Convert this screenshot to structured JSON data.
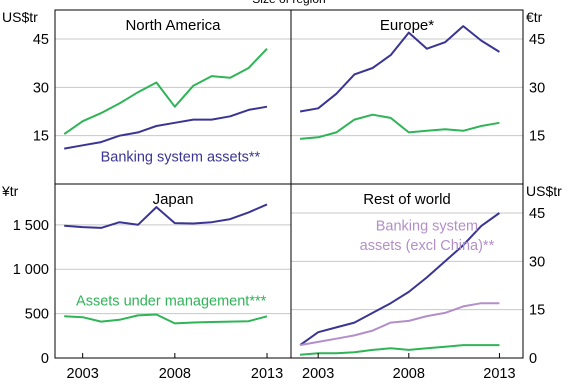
{
  "chart_data": {
    "type": "line",
    "top_note": "Size of region",
    "x_tick_labels": [
      "2003",
      "2008",
      "2013"
    ],
    "x_ticks": [
      2003,
      2008,
      2013
    ],
    "xlim": [
      2001.5,
      2014.3
    ],
    "colors": {
      "banking": "#3a3594",
      "assets": "#2fb457",
      "rest_banking_ex_china": "#b38fc9"
    },
    "panels": [
      {
        "key": "north_america",
        "title": "North America",
        "unit_left": "US$tr",
        "unit_right": "",
        "ylim": [
          0,
          54
        ],
        "y_ticks": [
          15,
          30,
          45
        ],
        "y_tick_labels": [
          "15",
          "30",
          "45"
        ],
        "annotations": [
          {
            "text": "Banking system assets**",
            "color_key": "banking",
            "at": [
              2008.3,
              7.0
            ]
          }
        ],
        "series": [
          {
            "color_key": "assets",
            "x": [
              2002,
              2003,
              2004,
              2005,
              2006,
              2007,
              2008,
              2009,
              2010,
              2011,
              2012,
              2013
            ],
            "values": [
              15.5,
              19.5,
              22,
              25,
              28.5,
              31.5,
              24,
              30.5,
              33.5,
              33.0,
              36,
              42
            ]
          },
          {
            "color_key": "banking",
            "x": [
              2002,
              2003,
              2004,
              2005,
              2006,
              2007,
              2008,
              2009,
              2010,
              2011,
              2012,
              2013
            ],
            "values": [
              11,
              12,
              13,
              15,
              16,
              18,
              19,
              20,
              20,
              21,
              23,
              24
            ]
          }
        ]
      },
      {
        "key": "europe",
        "title": "Europe*",
        "unit_left": "",
        "unit_right": "€tr",
        "ylim": [
          0,
          54
        ],
        "y_ticks": [
          15,
          30,
          45
        ],
        "y_tick_labels": [
          "15",
          "30",
          "45"
        ],
        "annotations": [],
        "series": [
          {
            "color_key": "banking",
            "x": [
              2002,
              2003,
              2004,
              2005,
              2006,
              2007,
              2008,
              2009,
              2010,
              2011,
              2012,
              2013
            ],
            "values": [
              22.5,
              23.5,
              28,
              34,
              36,
              40,
              47,
              42,
              44,
              49,
              44.5,
              41
            ]
          },
          {
            "color_key": "assets",
            "x": [
              2002,
              2003,
              2004,
              2005,
              2006,
              2007,
              2008,
              2009,
              2010,
              2011,
              2012,
              2013
            ],
            "values": [
              14,
              14.5,
              16,
              20,
              21.5,
              20.5,
              16,
              16.5,
              17,
              16.5,
              18,
              19
            ]
          }
        ]
      },
      {
        "key": "japan",
        "title": "Japan",
        "unit_left": "¥tr",
        "unit_right": "",
        "ylim": [
          0,
          1960
        ],
        "y_ticks": [
          0,
          500,
          1000,
          1500
        ],
        "y_tick_labels": [
          "0",
          "500",
          "1 000",
          "1 500"
        ],
        "annotations": [
          {
            "text": "Assets under management***",
            "color_key": "assets",
            "at": [
              2007.8,
              590
            ]
          }
        ],
        "series": [
          {
            "color_key": "banking",
            "x": [
              2002,
              2003,
              2004,
              2005,
              2006,
              2007,
              2008,
              2009,
              2010,
              2011,
              2012,
              2013
            ],
            "values": [
              1490,
              1475,
              1465,
              1530,
              1500,
              1700,
              1520,
              1515,
              1530,
              1565,
              1640,
              1730
            ]
          },
          {
            "color_key": "assets",
            "x": [
              2002,
              2003,
              2004,
              2005,
              2006,
              2007,
              2008,
              2009,
              2010,
              2011,
              2012,
              2013
            ],
            "values": [
              470,
              460,
              410,
              430,
              480,
              490,
              390,
              400,
              405,
              410,
              415,
              470
            ]
          }
        ]
      },
      {
        "key": "rest_of_world",
        "title": "Rest of world",
        "unit_left": "",
        "unit_right": "US$tr",
        "ylim": [
          0,
          54
        ],
        "y_ticks": [
          0,
          15,
          30,
          45
        ],
        "y_tick_labels": [
          "0",
          "15",
          "30",
          "45"
        ],
        "annotations": [
          {
            "text": "Banking system",
            "color_key": "rest_banking_ex_china",
            "at": [
              2009.0,
              39.5
            ]
          },
          {
            "text": "assets (excl China)**",
            "color_key": "rest_banking_ex_china",
            "at": [
              2009.0,
              33.5
            ]
          }
        ],
        "series": [
          {
            "color_key": "banking",
            "x": [
              2002,
              2003,
              2004,
              2005,
              2006,
              2007,
              2008,
              2009,
              2010,
              2011,
              2012,
              2013
            ],
            "values": [
              4,
              8,
              9.5,
              11,
              14,
              17,
              20.5,
              25,
              30,
              35,
              41,
              45
            ]
          },
          {
            "color_key": "rest_banking_ex_china",
            "x": [
              2002,
              2003,
              2004,
              2005,
              2006,
              2007,
              2008,
              2009,
              2010,
              2011,
              2012,
              2013
            ],
            "values": [
              4,
              5,
              6,
              7,
              8.5,
              11,
              11.5,
              13,
              14,
              16,
              17,
              17
            ]
          },
          {
            "color_key": "assets",
            "x": [
              2002,
              2003,
              2004,
              2005,
              2006,
              2007,
              2008,
              2009,
              2010,
              2011,
              2012,
              2013
            ],
            "values": [
              1,
              1.5,
              1.5,
              1.8,
              2.5,
              3,
              2.5,
              3,
              3.5,
              4,
              4,
              4
            ]
          }
        ]
      }
    ]
  }
}
